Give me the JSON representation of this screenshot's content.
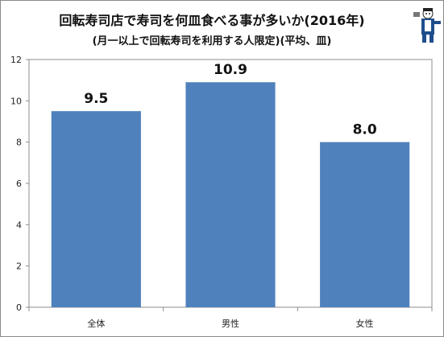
{
  "chart_data": {
    "type": "bar",
    "title": "回転寿司店で寿司を何皿食べる事が多いか(2016年)",
    "subtitle": "(月一以上で回転寿司を利用する人限定)(平均、皿)",
    "categories": [
      "全体",
      "男性",
      "女性"
    ],
    "values": [
      9.5,
      10.9,
      8.0
    ],
    "data_labels": [
      "9.5",
      "10.9",
      "8.0"
    ],
    "xlabel": "",
    "ylabel": "",
    "ylim": [
      0,
      12
    ],
    "yticks": [
      0,
      2,
      4,
      6,
      8,
      10,
      12
    ],
    "grid": false,
    "legend": "none",
    "bar_color": "#4f81bd"
  },
  "mascot": {
    "icon": "mascot-character-icon"
  }
}
